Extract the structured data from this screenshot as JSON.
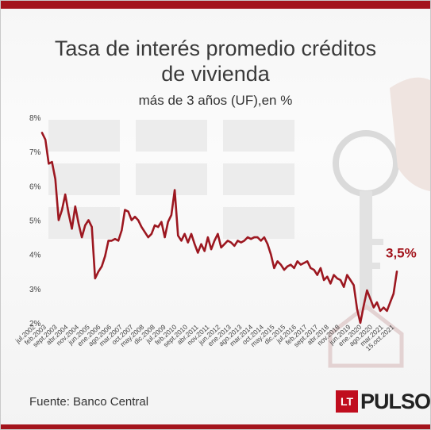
{
  "chart_data": {
    "type": "line",
    "title_line1": "Tasa de interés promedio créditos",
    "title_line2": "de vivienda",
    "subtitle": "más de 3 años (UF),en %",
    "xlabel": "",
    "ylabel": "",
    "ylim": [
      2,
      8
    ],
    "y_ticks": [
      "8%",
      "7%",
      "6%",
      "5%",
      "4%",
      "3%",
      "2%"
    ],
    "x_tick_labels": [
      "jul.2002",
      "feb.2003",
      "sept.2003",
      "abr.2004",
      "nov.2004",
      "jun.2005",
      "ene.2006",
      "ago.2006",
      "mar.2007",
      "oct.2007",
      "may.2008",
      "dic.2008",
      "jul.2009",
      "feb.2010",
      "sept.2010",
      "abr.2011",
      "nov.2011",
      "jun.2012",
      "ene.2013",
      "ago.2013",
      "mar.2014",
      "oct.2014",
      "may.2015",
      "dic.2015",
      "jul.2016",
      "feb.2017",
      "sept.2017",
      "abr.2018",
      "nov.2018",
      "jun.2019",
      "ene.2020",
      "ago.2020",
      "mar.2021",
      "15.oct.2021"
    ],
    "series": [
      {
        "name": "",
        "color": "#9c1720",
        "values": [
          7.55,
          7.35,
          6.65,
          6.7,
          6.2,
          5.0,
          5.3,
          5.75,
          5.2,
          4.75,
          5.4,
          4.9,
          4.5,
          4.85,
          5.0,
          4.8,
          3.3,
          3.5,
          3.65,
          3.95,
          4.4,
          4.4,
          4.45,
          4.4,
          4.7,
          5.3,
          5.25,
          5.0,
          5.1,
          5.0,
          4.8,
          4.65,
          4.5,
          4.6,
          4.85,
          4.8,
          4.95,
          4.5,
          4.95,
          5.15,
          5.88,
          4.55,
          4.4,
          4.6,
          4.35,
          4.6,
          4.3,
          4.05,
          4.3,
          4.1,
          4.5,
          4.15,
          4.4,
          4.6,
          4.2,
          4.3,
          4.4,
          4.35,
          4.25,
          4.4,
          4.35,
          4.4,
          4.5,
          4.45,
          4.5,
          4.5,
          4.4,
          4.5,
          4.3,
          4.0,
          3.6,
          3.8,
          3.7,
          3.55,
          3.65,
          3.7,
          3.6,
          3.8,
          3.7,
          3.75,
          3.8,
          3.6,
          3.55,
          3.4,
          3.6,
          3.25,
          3.35,
          3.15,
          3.4,
          3.3,
          3.25,
          3.05,
          3.4,
          3.25,
          3.1,
          2.4,
          2.0,
          2.5,
          2.95,
          2.7,
          2.45,
          2.6,
          2.35,
          2.45,
          2.35,
          2.6,
          2.85,
          3.5
        ]
      }
    ],
    "annotation": "3,5%",
    "grid": false,
    "legend": "none"
  },
  "footer": {
    "source": "Fuente: Banco Central"
  },
  "brand": {
    "logo_mark": "LT",
    "logo_word": "PULSO",
    "accent": "#a3141c"
  }
}
